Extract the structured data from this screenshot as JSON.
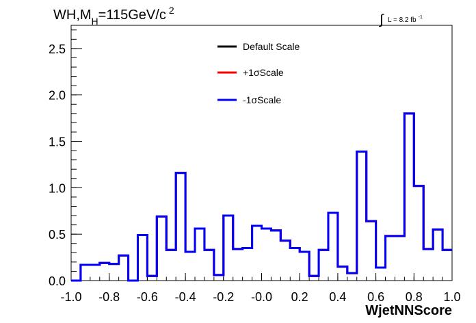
{
  "chart_data": {
    "type": "line",
    "title_main": "WH,M",
    "title_sub": "H",
    "title_rest": "=115GeV/c",
    "title_sup": "2",
    "lumi_integral": "∫",
    "lumi_text": "L = 8.2 fb",
    "lumi_sup": "-1",
    "xlabel": "WjetNNScore",
    "ylabel": "",
    "xlim": [
      -1.0,
      1.0
    ],
    "ylim": [
      0,
      2.75
    ],
    "x_ticks": [
      "-1.0",
      "-0.8",
      "-0.6",
      "-0.4",
      "-0.2",
      "-0.0",
      "0.2",
      "0.4",
      "0.6",
      "0.8",
      "1.0"
    ],
    "x_tick_values": [
      -1.0,
      -0.8,
      -0.6,
      -0.4,
      -0.2,
      0.0,
      0.2,
      0.4,
      0.6,
      0.8,
      1.0
    ],
    "y_ticks": [
      "0.0",
      "0.5",
      "1.0",
      "1.5",
      "2.0",
      "2.5"
    ],
    "y_tick_values": [
      0.0,
      0.5,
      1.0,
      1.5,
      2.0,
      2.5
    ],
    "bin_edges": [
      -1.0,
      -0.95,
      -0.9,
      -0.85,
      -0.8,
      -0.75,
      -0.7,
      -0.65,
      -0.6,
      -0.55,
      -0.5,
      -0.45,
      -0.4,
      -0.35,
      -0.3,
      -0.25,
      -0.2,
      -0.15,
      -0.1,
      -0.05,
      0.0,
      0.05,
      0.1,
      0.15,
      0.2,
      0.25,
      0.3,
      0.35,
      0.4,
      0.45,
      0.5,
      0.55,
      0.6,
      0.65,
      0.7,
      0.75,
      0.8,
      0.85,
      0.9,
      0.95,
      1.0
    ],
    "legend_position": "top-center",
    "series": [
      {
        "name": "Default Scale",
        "color": "#000000",
        "values": [
          0.0,
          0.17,
          0.17,
          0.19,
          0.18,
          0.27,
          0.0,
          0.49,
          0.05,
          0.69,
          0.33,
          1.16,
          0.31,
          0.56,
          0.33,
          0.06,
          0.7,
          0.34,
          0.35,
          0.59,
          0.56,
          0.54,
          0.43,
          0.35,
          0.31,
          0.05,
          0.33,
          0.73,
          0.15,
          0.08,
          1.39,
          0.64,
          0.14,
          0.48,
          0.48,
          1.8,
          1.02,
          0.34,
          0.55,
          0.33
        ]
      },
      {
        "name": "+1σScale",
        "color": "#ff0000",
        "values": [
          0.0,
          0.17,
          0.17,
          0.19,
          0.18,
          0.27,
          0.0,
          0.49,
          0.05,
          0.69,
          0.33,
          1.16,
          0.31,
          0.56,
          0.33,
          0.06,
          0.7,
          0.34,
          0.35,
          0.59,
          0.56,
          0.54,
          0.43,
          0.35,
          0.31,
          0.05,
          0.33,
          0.73,
          0.15,
          0.08,
          1.39,
          0.64,
          0.14,
          0.48,
          0.48,
          1.8,
          1.02,
          0.34,
          0.55,
          0.33
        ]
      },
      {
        "name": "-1σScale",
        "color": "#0000ff",
        "values": [
          0.0,
          0.17,
          0.17,
          0.19,
          0.18,
          0.27,
          0.0,
          0.49,
          0.05,
          0.69,
          0.33,
          1.16,
          0.31,
          0.56,
          0.33,
          0.06,
          0.7,
          0.34,
          0.35,
          0.59,
          0.56,
          0.54,
          0.43,
          0.35,
          0.31,
          0.05,
          0.33,
          0.73,
          0.15,
          0.08,
          1.39,
          0.64,
          0.14,
          0.48,
          0.48,
          1.8,
          1.02,
          0.34,
          0.55,
          0.33
        ]
      }
    ]
  }
}
